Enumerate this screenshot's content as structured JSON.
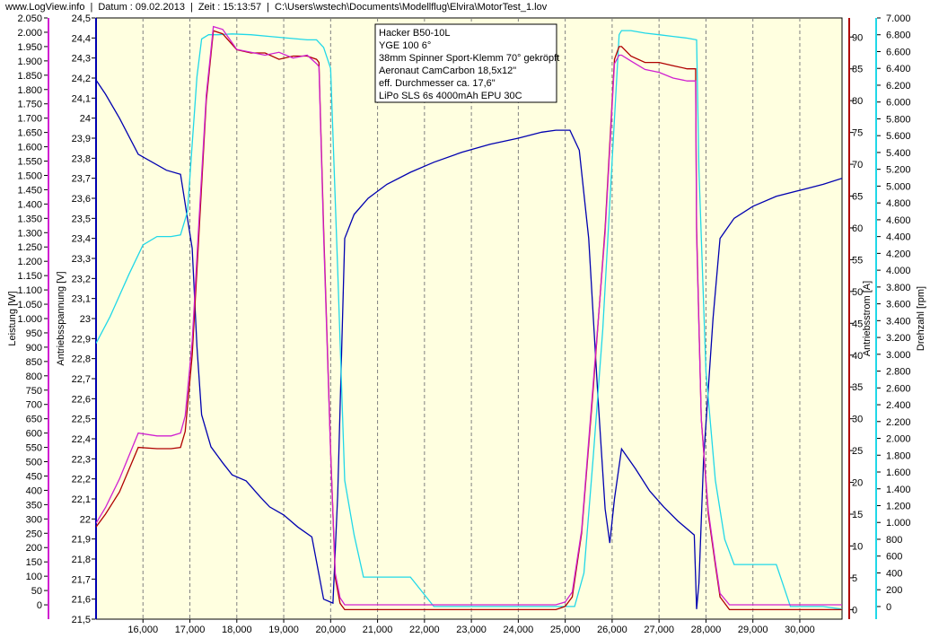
{
  "header": {
    "site": "www.LogView.info",
    "sep": "|",
    "date": "Datum : 09.02.2013",
    "time": "Zeit : 15:13:57",
    "path": "C:\\Users\\wstech\\Documents\\Modellflug\\Elvira\\MotorTest_1.lov"
  },
  "colors": {
    "background": "#ffffe0",
    "leistung": "#d020d0",
    "spannung": "#0000b0",
    "strom": "#b00000",
    "drehzahl": "#20d8e8",
    "gridline": "#808080"
  },
  "chart_data": {
    "type": "line",
    "grid": true,
    "x": {
      "min": 15000,
      "max": 30900,
      "ticks": [
        "16,000",
        "17,000",
        "18,000",
        "19,000",
        "20,000",
        "21,000",
        "22,000",
        "23,000",
        "24,000",
        "25,000",
        "26,000",
        "27,000",
        "28,000",
        "29,000",
        "30,000"
      ],
      "tick_values": [
        16000,
        17000,
        18000,
        19000,
        20000,
        21000,
        22000,
        23000,
        24000,
        25000,
        26000,
        27000,
        28000,
        29000,
        30000
      ]
    },
    "axes": {
      "leistung": {
        "label": "Leistung [W]",
        "min": -50,
        "max": 2050,
        "ticks": [
          "0",
          "50",
          "100",
          "150",
          "200",
          "250",
          "300",
          "350",
          "400",
          "450",
          "500",
          "550",
          "600",
          "650",
          "700",
          "750",
          "800",
          "850",
          "900",
          "950",
          "1.000",
          "1.050",
          "1.100",
          "1.150",
          "1.200",
          "1.250",
          "1.300",
          "1.350",
          "1.400",
          "1.450",
          "1.500",
          "1.550",
          "1.600",
          "1.650",
          "1.700",
          "1.750",
          "1.800",
          "1.850",
          "1.900",
          "1.950",
          "2.000",
          "2.050"
        ],
        "tick_start": 0,
        "tick_step": 50
      },
      "spannung": {
        "label": "Antriebsspannung [V]",
        "min": 21.5,
        "max": 24.5,
        "ticks": [
          "21,5",
          "21,6",
          "21,7",
          "21,8",
          "21,9",
          "22",
          "22,1",
          "22,2",
          "22,3",
          "22,4",
          "22,5",
          "22,6",
          "22,7",
          "22,8",
          "22,9",
          "23",
          "23,1",
          "23,2",
          "23,3",
          "23,4",
          "23,5",
          "23,6",
          "23,7",
          "23,8",
          "23,9",
          "24",
          "24,1",
          "24,2",
          "24,3",
          "24,4",
          "24,5"
        ],
        "tick_start": 21.5,
        "tick_step": 0.1
      },
      "strom": {
        "label": "Antriebsstrom [A]",
        "min": -1.5,
        "max": 93,
        "ticks": [
          "0",
          "5",
          "10",
          "15",
          "20",
          "25",
          "30",
          "35",
          "40",
          "45",
          "50",
          "55",
          "60",
          "65",
          "70",
          "75",
          "80",
          "85",
          "90"
        ],
        "tick_start": 0,
        "tick_step": 5
      },
      "drehzahl": {
        "label": "Drehzahl [rpm]",
        "min": -150,
        "max": 7000,
        "ticks": [
          "0",
          "200",
          "400",
          "600",
          "800",
          "1.000",
          "1.200",
          "1.400",
          "1.600",
          "1.800",
          "2.000",
          "2.200",
          "2.400",
          "2.600",
          "2.800",
          "3.000",
          "3.200",
          "3.400",
          "3.600",
          "3.800",
          "4.000",
          "4.200",
          "4.400",
          "4.600",
          "4.800",
          "5.000",
          "5.200",
          "5.400",
          "5.600",
          "5.800",
          "6.000",
          "6.200",
          "6.400",
          "6.600",
          "6.800",
          "7.000"
        ],
        "tick_start": 0,
        "tick_step": 200
      }
    },
    "legend_box": {
      "placement": "top-center",
      "lines": [
        "Hacker B50-10L",
        "YGE 100 6°",
        "38mm Spinner Sport-Klemm 70° gekröpft",
        "Aeronaut CamCarbon 18,5x12\"",
        "eff. Durchmesser ca. 17,6\"",
        "LiPo SLS 6s 4000mAh EPU 30C"
      ]
    },
    "series": [
      {
        "key": "spannung",
        "axis": "spannung",
        "x": [
          15000,
          15200,
          15500,
          15900,
          16500,
          16800,
          17050,
          17150,
          17250,
          17450,
          17700,
          17900,
          18200,
          18500,
          18700,
          19000,
          19300,
          19600,
          19850,
          20050,
          20150,
          20300,
          20500,
          20800,
          21200,
          21700,
          22200,
          22800,
          23400,
          24000,
          24500,
          24800,
          25100,
          25300,
          25500,
          25700,
          25850,
          25950,
          26050,
          26200,
          26500,
          26800,
          27100,
          27400,
          27750,
          27800,
          27850,
          27950,
          28150,
          28300,
          28600,
          29000,
          29500,
          30000,
          30500,
          30900
        ],
        "y": [
          24.19,
          24.12,
          24.0,
          23.82,
          23.74,
          23.72,
          23.35,
          22.86,
          22.52,
          22.36,
          22.28,
          22.22,
          22.19,
          22.11,
          22.06,
          22.02,
          21.96,
          21.91,
          21.6,
          21.58,
          22.12,
          23.4,
          23.52,
          23.6,
          23.67,
          23.73,
          23.78,
          23.83,
          23.87,
          23.9,
          23.93,
          23.94,
          23.94,
          23.84,
          23.4,
          22.6,
          22.05,
          21.88,
          22.1,
          22.35,
          22.25,
          22.14,
          22.06,
          21.99,
          21.92,
          21.55,
          21.68,
          22.3,
          23.0,
          23.4,
          23.5,
          23.56,
          23.61,
          23.64,
          23.67,
          23.7
        ]
      },
      {
        "key": "drehzahl",
        "axis": "drehzahl",
        "x": [
          15000,
          15300,
          15700,
          16000,
          16300,
          16600,
          16800,
          16950,
          17050,
          17150,
          17250,
          17400,
          17600,
          17900,
          18300,
          18700,
          19100,
          19500,
          19700,
          19850,
          20000,
          20150,
          20300,
          20500,
          20700,
          21000,
          21300,
          21700,
          22200,
          22800,
          23400,
          24000,
          24600,
          25000,
          25200,
          25400,
          25600,
          25800,
          26000,
          26150,
          26200,
          26400,
          26700,
          27000,
          27300,
          27600,
          27800,
          27850,
          28000,
          28200,
          28400,
          28600,
          28800,
          29200,
          29500,
          29800,
          30200,
          30500,
          30900
        ],
        "y": [
          3130,
          3450,
          3950,
          4300,
          4400,
          4400,
          4420,
          4700,
          5500,
          6300,
          6750,
          6800,
          6800,
          6810,
          6800,
          6780,
          6760,
          6740,
          6740,
          6650,
          6400,
          4000,
          1500,
          850,
          350,
          350,
          350,
          350,
          0,
          0,
          0,
          0,
          0,
          0,
          0,
          400,
          1800,
          3300,
          5300,
          6800,
          6850,
          6850,
          6820,
          6800,
          6780,
          6760,
          6740,
          5200,
          2800,
          1500,
          800,
          500,
          500,
          500,
          500,
          0,
          0,
          0,
          -30
        ]
      },
      {
        "key": "strom",
        "axis": "strom",
        "x": [
          15000,
          15200,
          15500,
          15900,
          16300,
          16600,
          16800,
          16900,
          17050,
          17200,
          17350,
          17500,
          17700,
          18000,
          18300,
          18600,
          18900,
          19200,
          19500,
          19700,
          19750,
          19850,
          20000,
          20100,
          20200,
          20300,
          20500,
          21000,
          22000,
          23000,
          24000,
          24800,
          25000,
          25150,
          25350,
          25600,
          25850,
          26050,
          26150,
          26200,
          26400,
          26700,
          27000,
          27300,
          27600,
          27780,
          27800,
          27900,
          28050,
          28200,
          28300,
          28500,
          29000,
          30000,
          30900
        ],
        "y": [
          13.0,
          15.0,
          18.5,
          25.5,
          25.3,
          25.3,
          25.5,
          28.0,
          40.0,
          60.0,
          80.0,
          91.0,
          90.5,
          88.0,
          87.5,
          87.5,
          86.5,
          87.0,
          87.0,
          86.5,
          86.0,
          60.0,
          25.0,
          5.0,
          1.0,
          0,
          0,
          0,
          0,
          0,
          0,
          0,
          0.5,
          2.0,
          12.0,
          35.0,
          60.0,
          86.5,
          88.5,
          88.5,
          87.0,
          86.0,
          86.0,
          85.5,
          85.0,
          85.0,
          60.0,
          30.0,
          15.0,
          7.0,
          2.0,
          0,
          0,
          0,
          0
        ]
      },
      {
        "key": "leistung",
        "axis": "leistung",
        "x": [
          15000,
          15200,
          15500,
          15900,
          16300,
          16600,
          16800,
          16900,
          17050,
          17200,
          17350,
          17500,
          17700,
          18000,
          18300,
          18600,
          18900,
          19200,
          19500,
          19700,
          19750,
          19850,
          20000,
          20100,
          20200,
          20300,
          20500,
          21000,
          22000,
          23000,
          24000,
          24800,
          25000,
          25150,
          25350,
          25600,
          25850,
          26050,
          26150,
          26200,
          26400,
          26700,
          27000,
          27300,
          27600,
          27780,
          27800,
          27900,
          28050,
          28200,
          28300,
          28500,
          29000,
          30000,
          30900
        ],
        "y": [
          285,
          340,
          440,
          600,
          590,
          590,
          600,
          660,
          920,
          1360,
          1780,
          2020,
          2010,
          1940,
          1930,
          1920,
          1930,
          1910,
          1920,
          1890,
          1880,
          1290,
          530,
          110,
          25,
          0,
          0,
          0,
          0,
          0,
          0,
          0,
          10,
          45,
          260,
          780,
          1300,
          1890,
          1920,
          1920,
          1900,
          1870,
          1860,
          1840,
          1830,
          1830,
          1290,
          650,
          330,
          150,
          40,
          0,
          0,
          0,
          0
        ]
      }
    ]
  }
}
